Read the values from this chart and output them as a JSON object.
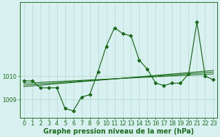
{
  "background_color": "#d8f0f0",
  "grid_color": "#b0d8cc",
  "line_color": "#1a6b1a",
  "xlabel": "Graphe pression niveau de la mer (hPa)",
  "xlabel_fontsize": 7,
  "tick_fontsize": 6,
  "xlim": [
    -0.5,
    23.5
  ],
  "ylim": [
    1008.2,
    1013.2
  ],
  "yticks": [
    1009,
    1010
  ],
  "xticks": [
    0,
    1,
    2,
    3,
    4,
    5,
    6,
    7,
    8,
    9,
    10,
    11,
    12,
    13,
    14,
    15,
    16,
    17,
    18,
    19,
    20,
    21,
    22,
    23
  ],
  "series1": [
    1009.8,
    1009.8,
    1009.5,
    1009.5,
    1009.5,
    1008.6,
    1008.5,
    1009.1,
    1009.2,
    1010.2,
    1011.3,
    1012.1,
    1011.85,
    1011.75,
    1010.7,
    1010.3,
    1009.7,
    1009.6,
    1009.7,
    1009.7,
    1010.1,
    1012.35,
    1010.0,
    1009.85
  ],
  "trend1_x": [
    0,
    23
  ],
  "trend1_y": [
    1009.55,
    1010.25
  ],
  "trend2_x": [
    0,
    23
  ],
  "trend2_y": [
    1009.7,
    1010.1
  ],
  "trend3_x": [
    0,
    23
  ],
  "trend3_y": [
    1009.62,
    1010.18
  ]
}
